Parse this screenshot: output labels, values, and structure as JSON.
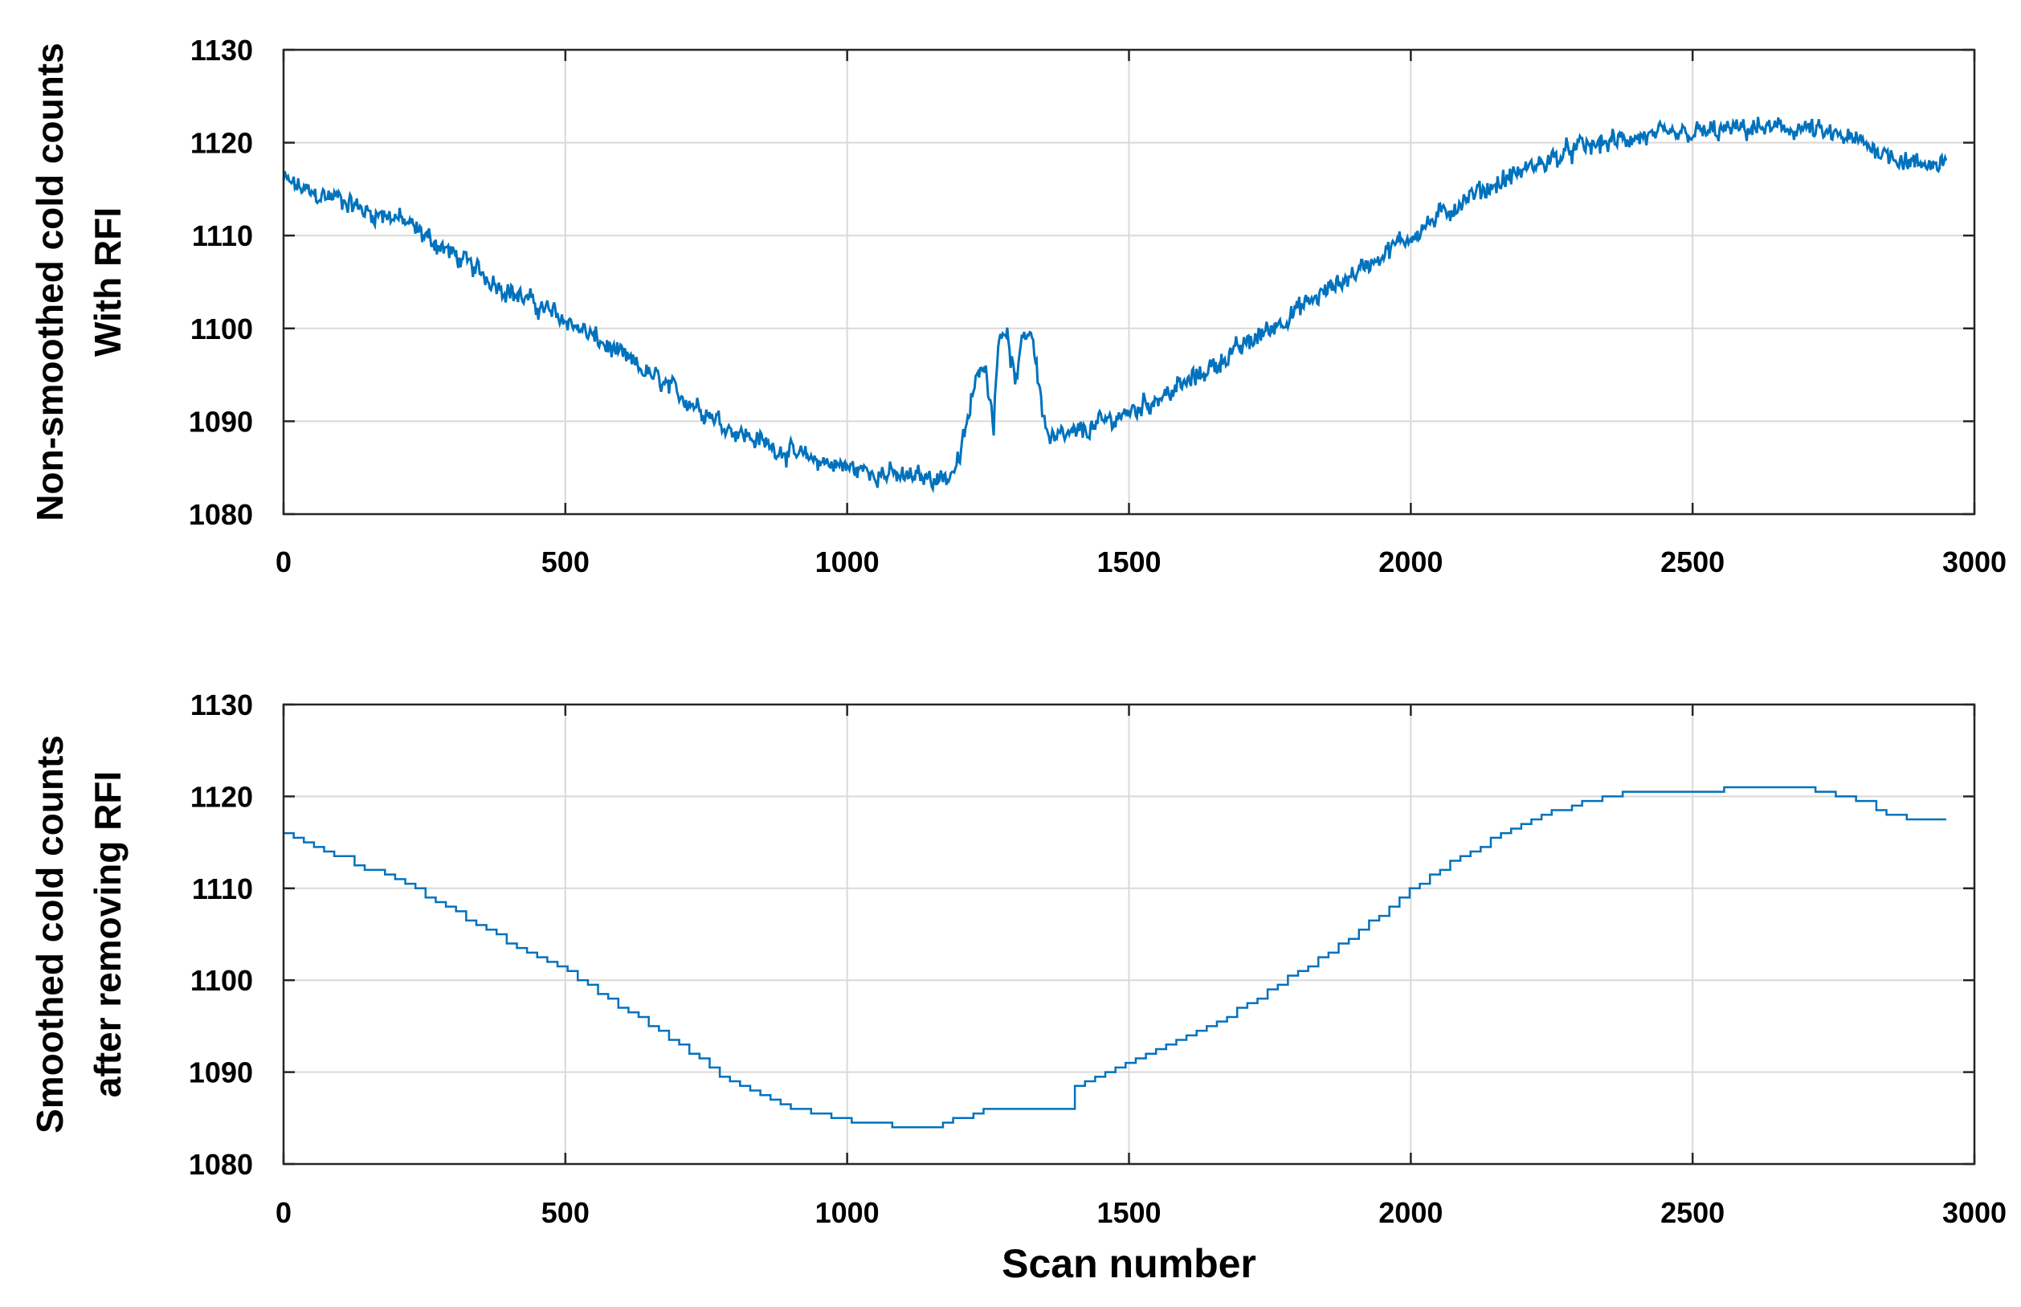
{
  "chart_data": [
    {
      "type": "line",
      "title": "",
      "ylabel_lines": [
        "Non-smoothed cold counts",
        "With RFI"
      ],
      "xlabel": "",
      "xlim": [
        0,
        3000
      ],
      "ylim": [
        1080,
        1130
      ],
      "xticks": [
        0,
        500,
        1000,
        1500,
        2000,
        2500,
        3000
      ],
      "yticks": [
        1080,
        1090,
        1100,
        1110,
        1120,
        1130
      ],
      "grid": true,
      "line_color": "#0072BD",
      "noise_amplitude": 1.4,
      "series": [
        {
          "x": [
            0,
            50,
            100,
            150,
            200,
            300,
            400,
            500,
            600,
            700,
            800,
            900,
            1000,
            1100,
            1180,
            1200,
            1220,
            1240,
            1250,
            1260,
            1270,
            1280,
            1290,
            1300,
            1310,
            1320,
            1330,
            1340,
            1350,
            1360,
            1400,
            1500,
            1600,
            1700,
            1800,
            1900,
            2000,
            2100,
            2200,
            2300,
            2400,
            2500,
            2600,
            2700,
            2800,
            2880,
            2900,
            2950
          ],
          "y": [
            1116,
            1114.5,
            1114,
            1112.5,
            1112,
            1108,
            1104,
            1101,
            1097,
            1093,
            1089,
            1086.5,
            1085,
            1084,
            1084,
            1086,
            1092,
            1097,
            1094,
            1090,
            1100,
            1100,
            1097,
            1094,
            1098,
            1100,
            1099,
            1094,
            1090,
            1088,
            1088.5,
            1091,
            1094,
            1098,
            1102,
            1106,
            1110,
            1114,
            1117,
            1119.5,
            1120.5,
            1121,
            1121.5,
            1121.5,
            1120,
            1118,
            1117.5,
            1118
          ]
        }
      ]
    },
    {
      "type": "line",
      "title": "",
      "ylabel_lines": [
        "Smoothed cold counts",
        "after removing RFI"
      ],
      "xlabel": "Scan number",
      "xlim": [
        0,
        3000
      ],
      "ylim": [
        1080,
        1130
      ],
      "xticks": [
        0,
        500,
        1000,
        1500,
        2000,
        2500,
        3000
      ],
      "yticks": [
        1080,
        1090,
        1100,
        1110,
        1120,
        1130
      ],
      "grid": true,
      "line_color": "#0072BD",
      "step_width": 18,
      "series": [
        {
          "x": [
            0,
            50,
            100,
            150,
            200,
            300,
            400,
            500,
            600,
            700,
            800,
            900,
            1000,
            1100,
            1150,
            1240,
            1390,
            1400,
            1500,
            1600,
            1700,
            1800,
            1900,
            2000,
            2100,
            2200,
            2300,
            2400,
            2500,
            2600,
            2700,
            2800,
            2850,
            2900,
            2950
          ],
          "y": [
            1116,
            1114.5,
            1113.5,
            1112,
            1111,
            1107.5,
            1104,
            1101,
            1097,
            1093,
            1088.5,
            1086,
            1084.8,
            1084,
            1084,
            1086,
            1086,
            1088.5,
            1091,
            1094,
            1097,
            1101,
            1105,
            1110,
            1114,
            1117,
            1119.5,
            1120.5,
            1120.5,
            1121,
            1121,
            1119.5,
            1118,
            1117.5,
            1117.5
          ]
        }
      ]
    }
  ]
}
